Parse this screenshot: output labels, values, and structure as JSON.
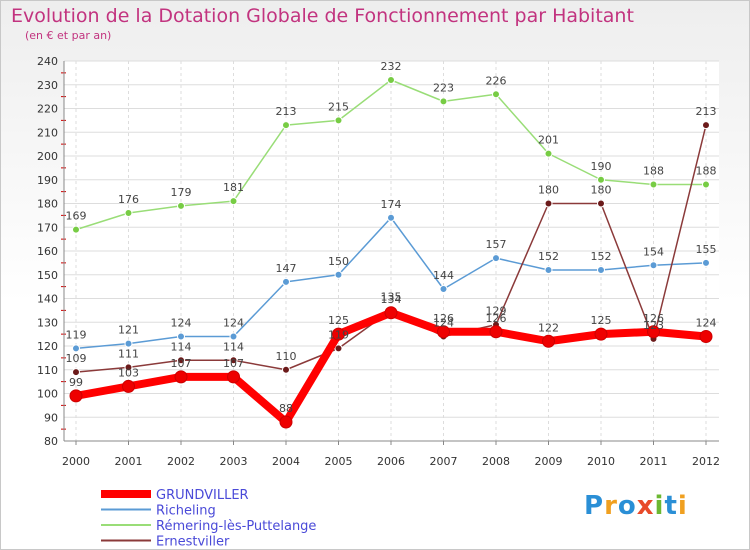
{
  "title": "Evolution de la Dotation Globale de Fonctionnement par Habitant",
  "subtitle": "(en € et par an)",
  "logo": {
    "letters": [
      "P",
      "r",
      "o",
      "x",
      "i",
      "t",
      "i"
    ],
    "colors": [
      "#2a8fd6",
      "#f0a020",
      "#2a8fd6",
      "#e84a2a",
      "#6cb832",
      "#2a8fd6",
      "#f0a020"
    ]
  },
  "chart_data": {
    "type": "line",
    "categories": [
      "2000",
      "2001",
      "2002",
      "2003",
      "2004",
      "2005",
      "2006",
      "2007",
      "2008",
      "2009",
      "2010",
      "2011",
      "2012"
    ],
    "ylim": [
      80,
      240
    ],
    "yticks": [
      80,
      90,
      100,
      110,
      120,
      130,
      140,
      150,
      160,
      170,
      180,
      190,
      200,
      210,
      220,
      230,
      240
    ],
    "grid": true,
    "legend_position": "bottom-left",
    "series": [
      {
        "name": "GRUNDVILLER",
        "color": "#ff0000",
        "marker": "#ee0000",
        "weight": "thick",
        "values": [
          99,
          103,
          107,
          107,
          88,
          125,
          134,
          126,
          126,
          122,
          125,
          126,
          124
        ]
      },
      {
        "name": "Richeling",
        "color": "#5b9bd5",
        "marker": "#5b9bd5",
        "weight": "thin",
        "values": [
          119,
          121,
          124,
          124,
          147,
          150,
          174,
          144,
          157,
          152,
          152,
          154,
          155
        ]
      },
      {
        "name": "Rémering-lès-Puttelange",
        "color": "#99dd77",
        "marker": "#77cc44",
        "weight": "thin",
        "values": [
          169,
          176,
          179,
          181,
          213,
          215,
          232,
          223,
          226,
          201,
          190,
          188,
          188
        ]
      },
      {
        "name": "Ernestviller",
        "color": "#8b3a3a",
        "marker": "#6b1a1a",
        "weight": "thin",
        "values": [
          109,
          111,
          114,
          114,
          110,
          119,
          135,
          124,
          129,
          180,
          180,
          123,
          213
        ]
      }
    ]
  }
}
